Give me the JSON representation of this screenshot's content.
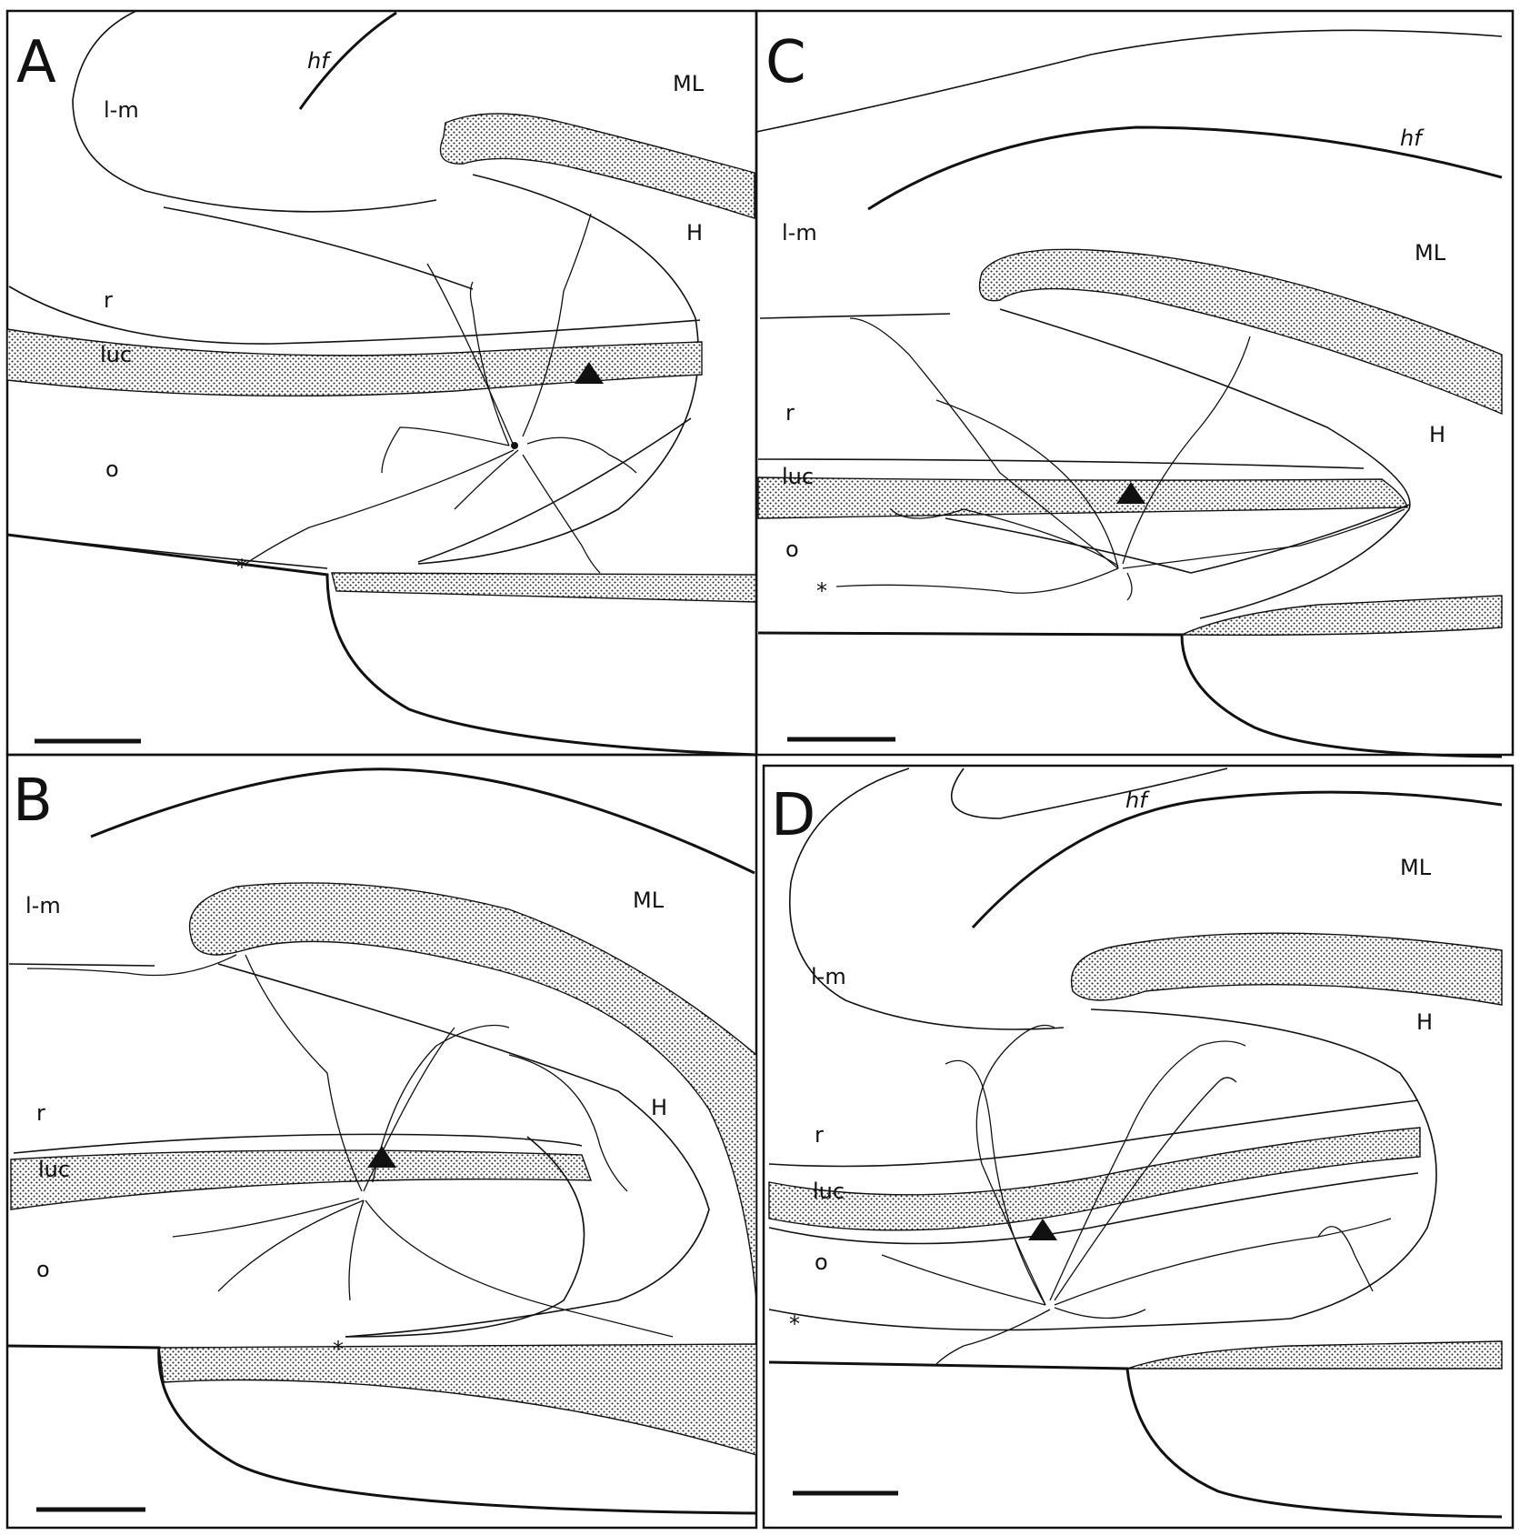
{
  "panels": [
    {
      "id": "A",
      "letter": "A",
      "labels": {
        "hf": "hf",
        "ML": "ML",
        "H": "H",
        "lm": "l-m",
        "r": "r",
        "luc": "luc",
        "o": "o"
      }
    },
    {
      "id": "B",
      "letter": "B",
      "labels": {
        "ML": "ML",
        "H": "H",
        "lm": "l-m",
        "r": "r",
        "luc": "luc",
        "o": "o"
      }
    },
    {
      "id": "C",
      "letter": "C",
      "labels": {
        "hf": "hf",
        "ML": "ML",
        "H": "H",
        "lm": "l-m",
        "r": "r",
        "luc": "luc",
        "o": "o"
      }
    },
    {
      "id": "D",
      "letter": "D",
      "labels": {
        "hf": "hf",
        "ML": "ML",
        "H": "H",
        "lm": "l-m",
        "r": "r",
        "luc": "luc",
        "o": "o"
      }
    }
  ],
  "markers": {
    "asterisk": "*"
  },
  "colors": {
    "ink": "#111111",
    "background": "#ffffff"
  }
}
